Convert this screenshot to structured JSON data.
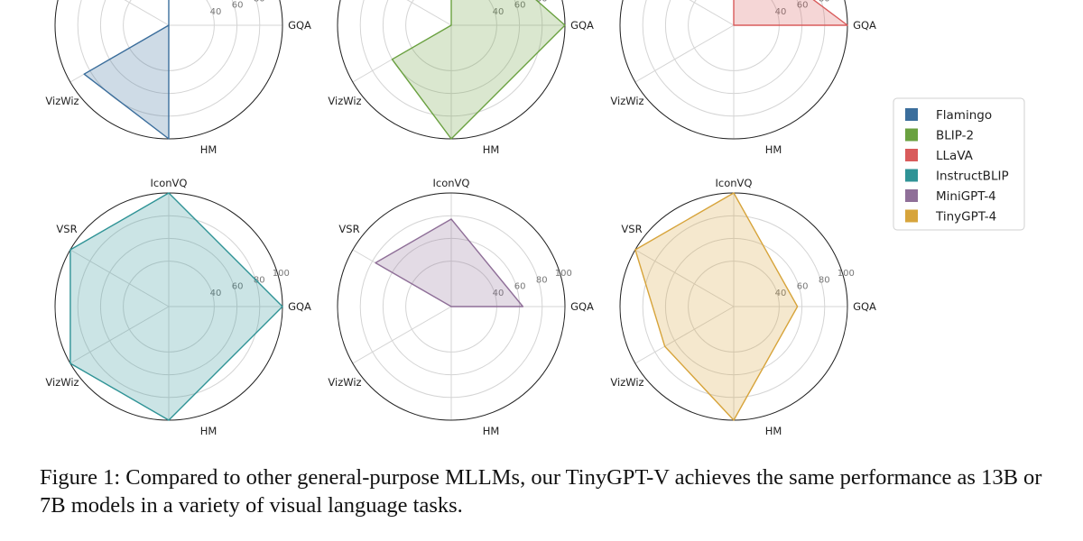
{
  "chart_data": {
    "type": "radar",
    "axes": [
      "IconVQ",
      "GQA",
      "HM",
      "VizWiz",
      "VSR"
    ],
    "radial_ticks": [
      40,
      60,
      80,
      100
    ],
    "radial_range": [
      0,
      100
    ],
    "grid": true,
    "legend_position": "right",
    "series": [
      {
        "name": "Flamingo",
        "color": "#3b6e9c",
        "values": [
          68,
          0,
          100,
          86,
          0
        ]
      },
      {
        "name": "BLIP-2",
        "color": "#6aa140",
        "values": [
          88,
          100,
          100,
          60,
          0
        ]
      },
      {
        "name": "LLaVA",
        "color": "#d95b5b",
        "values": [
          75,
          100,
          0,
          0,
          0
        ]
      },
      {
        "name": "InstructBLIP",
        "color": "#2f9396",
        "values": [
          100,
          100,
          100,
          100,
          100
        ]
      },
      {
        "name": "MiniGPT-4",
        "color": "#8f6f98",
        "values": [
          77,
          63,
          0,
          0,
          77
        ]
      },
      {
        "name": "TinyGPT-4",
        "color": "#d7a43b",
        "values": [
          100,
          56,
          100,
          70,
          100
        ]
      }
    ]
  },
  "caption": "Figure 1: Compared to other general-purpose MLLMs, our TinyGPT-V achieves the same performance as 13B or 7B models in a variety of visual language tasks."
}
